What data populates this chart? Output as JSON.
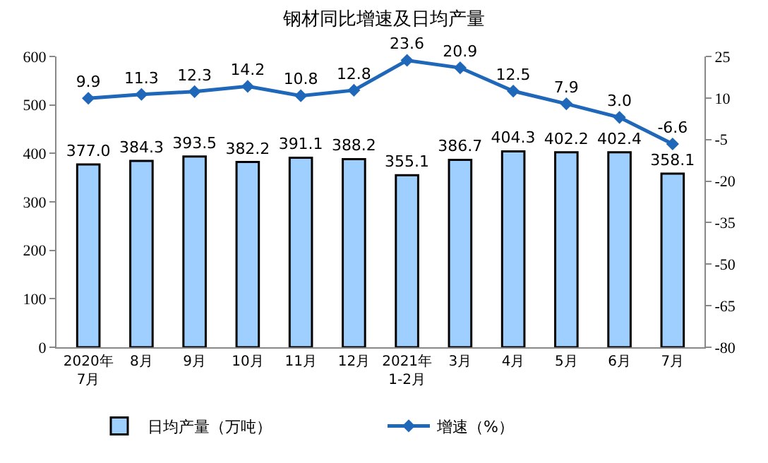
{
  "chart_data": {
    "type": "bar",
    "title": "钢材同比增速及日均产量",
    "categories": [
      "2020年\n7月",
      "8月",
      "9月",
      "10月",
      "11月",
      "12月",
      "2021年\n1-2月",
      "3月",
      "4月",
      "5月",
      "6月",
      "7月"
    ],
    "series": [
      {
        "name": "日均产量（万吨）",
        "color": "#9fcfff",
        "values": [
          377.0,
          384.3,
          393.5,
          382.2,
          391.1,
          388.2,
          355.1,
          386.7,
          404.3,
          402.2,
          402.4,
          358.1
        ],
        "value_labels": [
          "377.0",
          "384.3",
          "393.5",
          "382.2",
          "391.1",
          "388.2",
          "355.1",
          "386.7",
          "404.3",
          "402.2",
          "402.4",
          "358.1"
        ]
      },
      {
        "name": "增速（%）",
        "type": "line",
        "axis": "y2",
        "color": "#1f67b8",
        "marker": "diamond",
        "values": [
          9.9,
          11.3,
          12.3,
          14.2,
          10.8,
          12.8,
          23.6,
          20.9,
          12.5,
          7.9,
          3.0,
          -6.6
        ],
        "value_labels": [
          "9.9",
          "11.3",
          "12.3",
          "14.2",
          "10.8",
          "12.8",
          "23.6",
          "20.9",
          "12.5",
          "7.9",
          "3.0",
          "-6.6"
        ]
      }
    ],
    "ylim": [
      0,
      600
    ],
    "yticks": [
      0,
      100,
      200,
      300,
      400,
      500,
      600
    ],
    "y2lim": [
      -80,
      25
    ],
    "y2ticks": [
      -80,
      -65,
      -50,
      -35,
      -20,
      -5,
      10,
      25
    ],
    "legend": "bottom"
  }
}
